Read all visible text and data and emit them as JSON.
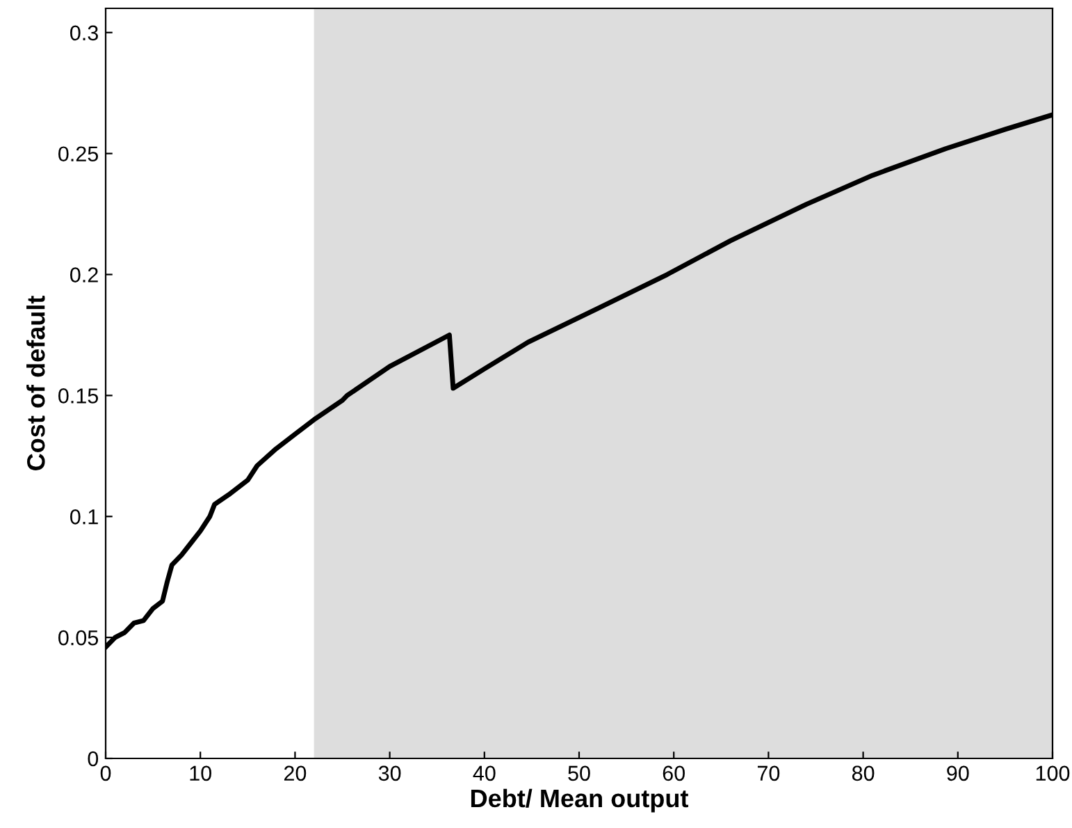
{
  "chart_data": {
    "type": "line",
    "xlabel": "Debt/ Mean output",
    "ylabel": "Cost of default",
    "x": [
      0,
      1,
      2,
      3,
      4,
      5,
      6,
      6.5,
      7,
      8,
      9,
      10,
      11,
      11.5,
      13,
      15,
      16,
      18,
      20,
      22,
      25,
      25.5,
      30,
      36.3,
      36.7,
      40,
      44.6,
      52,
      59.3,
      66,
      74,
      81,
      88.7,
      95,
      100
    ],
    "series": [
      {
        "color": "#000000",
        "values": [
          0.046,
          0.05,
          0.052,
          0.056,
          0.057,
          0.062,
          0.065,
          0.073,
          0.08,
          0.084,
          0.089,
          0.094,
          0.1,
          0.105,
          0.109,
          0.115,
          0.121,
          0.128,
          0.134,
          0.14,
          0.148,
          0.15,
          0.162,
          0.175,
          0.153,
          0.161,
          0.172,
          0.186,
          0.2,
          0.214,
          0.229,
          0.241,
          0.252,
          0.26,
          0.266
        ]
      }
    ],
    "xlim": [
      0,
      100
    ],
    "xticks": [
      0,
      10,
      20,
      30,
      40,
      50,
      60,
      70,
      80,
      90,
      100
    ],
    "ylim": [
      0,
      0.31
    ],
    "yticks": [
      0,
      0.05,
      0.1,
      0.15,
      0.2,
      0.25,
      0.3
    ],
    "bands": [
      {
        "axis": "x",
        "from": 22,
        "to": 100,
        "color": "#dddddd"
      }
    ],
    "line_style": "solid",
    "marker": "none",
    "grid": false,
    "legend": false
  }
}
